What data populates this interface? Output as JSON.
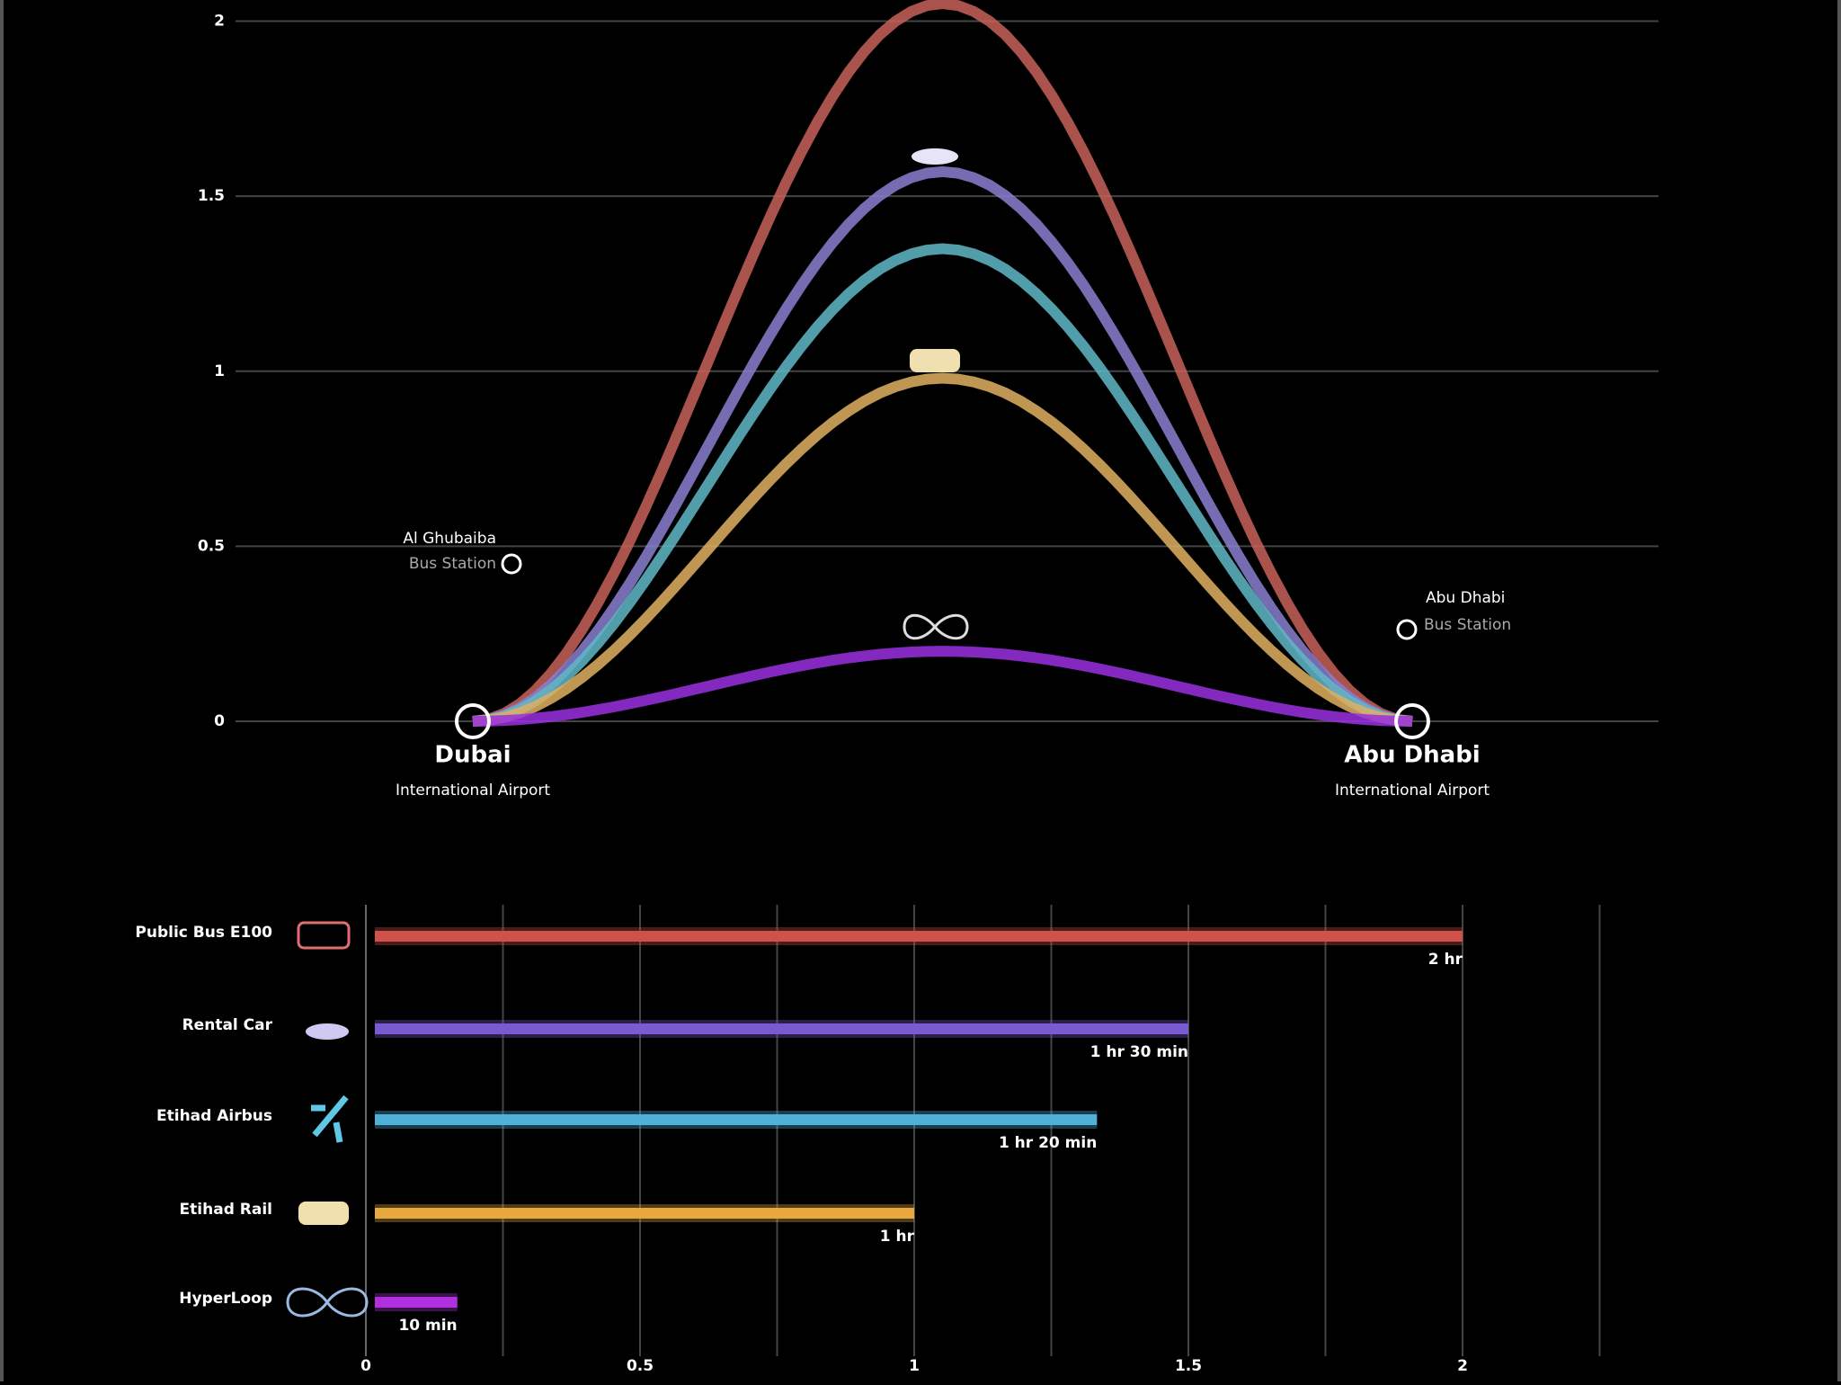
{
  "chart_data": [
    {
      "type": "arc",
      "values": [
        2.05,
        1.57,
        1.35,
        0.98,
        0.2
      ],
      "colors": [
        "#c8625a",
        "#8a7fd0",
        "#5fb8c8",
        "#e0b060",
        "#9a30e0"
      ],
      "ylim": [
        0,
        2.05
      ],
      "yticks": [
        0,
        0.5,
        1,
        1.5,
        2
      ],
      "grid": true,
      "annotations": {
        "origin": [
          "Dubai",
          "International Airport"
        ],
        "destination": [
          "Abu Dhabi",
          "International Airport"
        ],
        "origin_bus": [
          "Al Ghubaiba",
          "Bus Station"
        ],
        "destination_bus": [
          "Abu Dhabi",
          "Bus Station"
        ]
      }
    },
    {
      "type": "hbar",
      "categories": [
        "Public Bus E100",
        "Rental Car",
        "Etihad Airbus",
        "Etihad Rail",
        "HyperLoop"
      ],
      "values": [
        2,
        1.5,
        1.3333,
        1,
        0.1667
      ],
      "value_labels": [
        "2 hr",
        "1 hr 30 min",
        "1 hr 20 min",
        "1 hr",
        "10 min"
      ],
      "colors": [
        "#d0504a",
        "#7a5ad0",
        "#4fb0d8",
        "#e8a840",
        "#b030e0"
      ],
      "xlim": [
        0,
        2.4
      ],
      "xticks": [
        0,
        0.5,
        1,
        1.5,
        2
      ],
      "minor_xticks": [
        0.25,
        0.75,
        1.25,
        1.75,
        2.25
      ],
      "grid": true
    }
  ]
}
